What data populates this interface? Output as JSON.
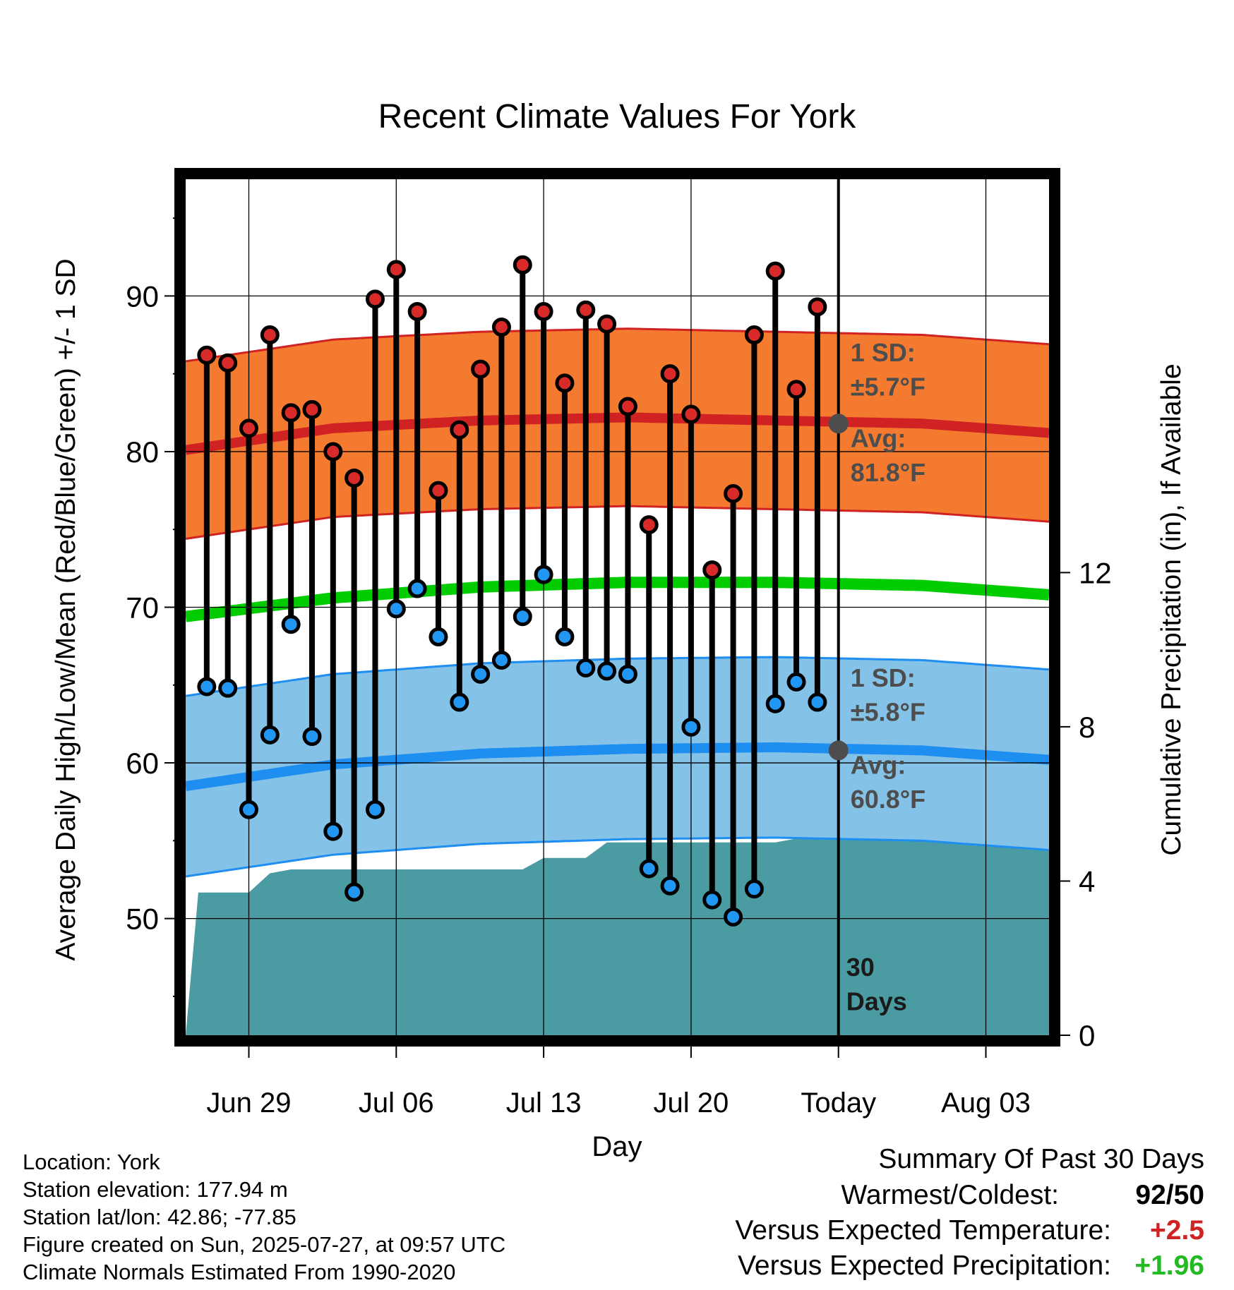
{
  "chart_data": {
    "type": "line",
    "title": "Recent Climate Values For York",
    "xlabel": "Day",
    "ylabel": "Average Daily High/Low/Mean (Red/Blue/Green) +/- 1 SD",
    "y2label": "Cumulative Precipitation (in), If Available",
    "x_tick_labels": [
      "Jun 29",
      "Jul 06",
      "Jul 13",
      "Jul 20",
      "Today",
      "Aug 03"
    ],
    "x_tick_days": [
      3,
      10,
      17,
      24,
      31,
      38
    ],
    "x_range_days": [
      0,
      41
    ],
    "y_ticks": [
      "50",
      "60",
      "70",
      "80",
      "90"
    ],
    "y_range": [
      42.5,
      97.5
    ],
    "y2_ticks": [
      "0",
      "4",
      "8",
      "12"
    ],
    "y2_range": [
      0,
      22.2
    ],
    "grid": true,
    "series": [
      {
        "name": "High",
        "days": [
          1,
          2,
          3,
          4,
          5,
          6,
          7,
          8,
          9,
          10,
          11,
          12,
          13,
          14,
          15,
          16,
          17,
          18,
          19,
          20,
          21,
          22,
          23,
          24,
          25,
          26,
          27,
          28,
          29,
          30
        ],
        "values": [
          86.2,
          85.7,
          81.5,
          87.5,
          82.5,
          82.7,
          80.0,
          78.3,
          89.8,
          91.7,
          89.0,
          77.5,
          81.4,
          85.3,
          88.0,
          92.0,
          89.0,
          84.4,
          89.1,
          88.2,
          82.9,
          75.3,
          85.0,
          82.4,
          72.4,
          77.3,
          87.5,
          91.6,
          84.0,
          89.3
        ]
      },
      {
        "name": "Low",
        "days": [
          1,
          2,
          3,
          4,
          5,
          6,
          7,
          8,
          9,
          10,
          11,
          12,
          13,
          14,
          15,
          16,
          17,
          18,
          19,
          20,
          21,
          22,
          23,
          24,
          25,
          26,
          27,
          28,
          29,
          30
        ],
        "values": [
          64.9,
          64.8,
          57.0,
          61.8,
          68.9,
          61.7,
          55.6,
          51.7,
          57.0,
          69.9,
          71.2,
          68.1,
          63.9,
          65.7,
          66.6,
          69.4,
          72.1,
          68.1,
          66.1,
          65.9,
          65.7,
          53.2,
          52.1,
          62.3,
          51.2,
          50.1,
          51.9,
          63.8,
          65.2,
          63.9
        ]
      },
      {
        "name": "Normal High Avg",
        "days": [
          0,
          7,
          14,
          21,
          28,
          35,
          41
        ],
        "values": [
          80.1,
          81.5,
          82.0,
          82.2,
          82.0,
          81.8,
          81.2
        ],
        "sd": 5.7
      },
      {
        "name": "Normal Low Avg",
        "days": [
          0,
          7,
          14,
          21,
          28,
          35,
          41
        ],
        "values": [
          58.5,
          59.9,
          60.6,
          60.9,
          61.0,
          60.8,
          60.2
        ],
        "sd": 5.8
      },
      {
        "name": "Normal Mean",
        "days": [
          0,
          7,
          14,
          21,
          28,
          35,
          41
        ],
        "values": [
          69.4,
          70.6,
          71.3,
          71.6,
          71.6,
          71.4,
          70.8
        ]
      },
      {
        "name": "Cumulative Precipitation",
        "axis": "y2",
        "days": [
          0,
          0.6,
          1,
          2,
          3,
          4,
          5,
          6,
          7,
          8,
          9,
          10,
          11,
          12,
          13,
          14,
          15,
          16,
          17,
          18,
          19,
          20,
          21,
          22,
          23,
          24,
          25,
          26,
          27,
          28,
          29,
          30,
          31,
          41
        ],
        "values": [
          0,
          3.7,
          3.7,
          3.7,
          3.7,
          4.2,
          4.3,
          4.3,
          4.3,
          4.3,
          4.3,
          4.3,
          4.3,
          4.3,
          4.3,
          4.3,
          4.3,
          4.3,
          4.6,
          4.6,
          4.6,
          5.0,
          5.0,
          5.0,
          5.0,
          5.0,
          5.0,
          5.0,
          5.0,
          5.0,
          5.1,
          5.6,
          5.6,
          5.6
        ]
      }
    ],
    "annotations": {
      "high_sd_title": "1 SD:",
      "high_sd_value": "±5.7°F",
      "high_avg_title": "Avg:",
      "high_avg_value": "81.8°F",
      "high_avg": 81.8,
      "low_sd_title": "1 SD:",
      "low_sd_value": "±5.8°F",
      "low_avg_title": "Avg:",
      "low_avg_value": "60.8°F",
      "low_avg": 60.8,
      "period_line1": "30",
      "period_line2": "Days",
      "today_day": 31
    },
    "colors": {
      "high_band": "#f47a30",
      "high_line": "#d02222",
      "low_band": "#84c2e8",
      "low_line": "#1e8ef0",
      "mean_line": "#00cc00",
      "precip": "#4a9ba2",
      "high_dot": "#d92a2a",
      "low_dot": "#2196f3",
      "annotation": "#4d4d4d"
    }
  },
  "info": {
    "location": "Location: York",
    "elevation": "Station elevation: 177.94 m",
    "latlon": "Station lat/lon: 42.86; -77.85",
    "created": "Figure created on Sun, 2025-07-27, at 09:57 UTC",
    "normals": "Climate Normals Estimated From 1990-2020"
  },
  "summary": {
    "title": "Summary Of Past 30 Days",
    "warmest_label": "Warmest/Coldest:",
    "warmest_value": "92/50",
    "temp_label": "Versus Expected Temperature:",
    "temp_value": "+2.5",
    "temp_color": "#d02222",
    "precip_label": "Versus Expected Precipitation:",
    "precip_value": "+1.96",
    "precip_color": "#22bb22"
  }
}
